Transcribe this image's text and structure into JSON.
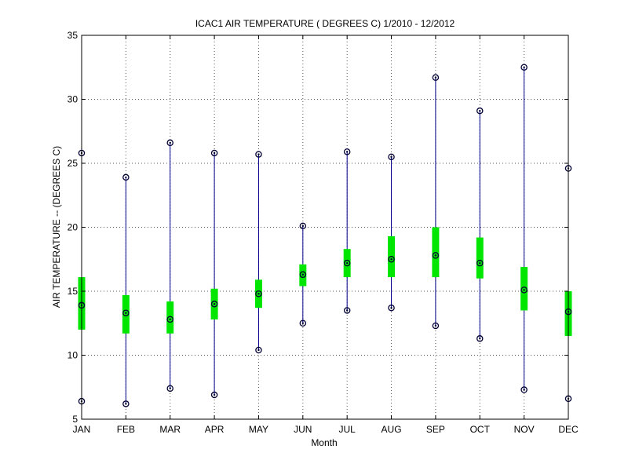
{
  "chart_data": {
    "type": "box",
    "title": "ICAC1  AIR TEMPERATURE ( DEGREES C) 1/2010 - 12/2012",
    "xlabel": "Month",
    "ylabel": "AIR TEMPERATURE -- (DEGREES C)",
    "ylim": [
      5,
      35
    ],
    "yticks": [
      "5",
      "10",
      "15",
      "20",
      "25",
      "30",
      "35"
    ],
    "grid": true,
    "categories": [
      "JAN",
      "FEB",
      "MAR",
      "APR",
      "MAY",
      "JUN",
      "JUL",
      "AUG",
      "SEP",
      "OCT",
      "NOV",
      "DEC"
    ],
    "min": [
      6.4,
      6.2,
      7.4,
      6.9,
      10.4,
      12.5,
      13.5,
      13.7,
      12.3,
      11.3,
      7.3,
      6.6
    ],
    "q1": [
      12.0,
      11.7,
      11.7,
      12.8,
      13.7,
      15.4,
      16.1,
      16.1,
      16.1,
      16.0,
      13.5,
      11.5
    ],
    "median": [
      13.9,
      13.3,
      12.8,
      14.0,
      14.8,
      16.3,
      17.2,
      17.5,
      17.8,
      17.2,
      15.1,
      13.4
    ],
    "q3": [
      16.1,
      14.7,
      14.2,
      15.2,
      15.9,
      17.1,
      18.3,
      19.3,
      20.0,
      19.2,
      16.9,
      15.0
    ],
    "max": [
      25.8,
      23.9,
      26.6,
      25.8,
      25.7,
      20.1,
      25.9,
      25.5,
      31.7,
      29.1,
      32.5,
      24.6
    ],
    "colors": {
      "whisker": "#00008b",
      "box": "#00e600",
      "marker": "#000033",
      "grid": "#555555"
    }
  }
}
